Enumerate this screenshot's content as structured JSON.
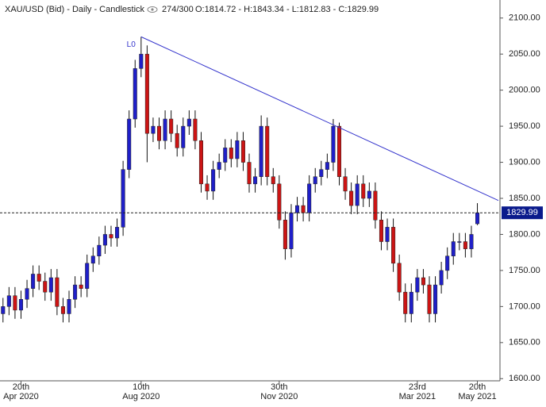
{
  "header": {
    "symbol": "XAU/USD (Bid) - Daily - Candlestick",
    "counter": "274/300",
    "ohlc": "O:1814.72 - H:1843.34 - L:1812.83 - C:1829.99"
  },
  "chart_data": {
    "type": "candlestick",
    "up_color": "#1f1fc8",
    "down_color": "#cc1414",
    "ylim": [
      1597,
      2125
    ],
    "yticks": [
      {
        "value": 1600,
        "label": "1600.00"
      },
      {
        "value": 1650,
        "label": "1650.00"
      },
      {
        "value": 1700,
        "label": "1700.00"
      },
      {
        "value": 1750,
        "label": "1750.00"
      },
      {
        "value": 1800,
        "label": "1800.00"
      },
      {
        "value": 1850,
        "label": "1850.00"
      },
      {
        "value": 1900,
        "label": "1900.00"
      },
      {
        "value": 1950,
        "label": "1950.00"
      },
      {
        "value": 2000,
        "label": "2000.00"
      },
      {
        "value": 2050,
        "label": "2050.00"
      },
      {
        "value": 2100,
        "label": "2100.00"
      }
    ],
    "xlim": [
      -0.5,
      82.5
    ],
    "xticks": [
      {
        "value": 3,
        "label": "20th",
        "sublabel": "Apr 2020"
      },
      {
        "value": 23,
        "label": "10th",
        "sublabel": "Aug 2020"
      },
      {
        "value": 46,
        "label": "30th",
        "sublabel": "Nov 2020"
      },
      {
        "value": 69,
        "label": "23rd",
        "sublabel": "Mar 2021"
      },
      {
        "value": 79,
        "label": "20th",
        "sublabel": "May 2021"
      }
    ],
    "open": [
      1690,
      1700,
      1715,
      1695,
      1710,
      1725,
      1745,
      1735,
      1720,
      1740,
      1700,
      1690,
      1710,
      1730,
      1725,
      1760,
      1770,
      1785,
      1800,
      1795,
      1810,
      1890,
      1960,
      2030,
      2050,
      1940,
      1950,
      1930,
      1960,
      1940,
      1920,
      1950,
      1960,
      1930,
      1870,
      1860,
      1890,
      1900,
      1920,
      1905,
      1930,
      1900,
      1870,
      1880,
      1950,
      1880,
      1870,
      1820,
      1780,
      1830,
      1840,
      1830,
      1870,
      1880,
      1890,
      1900,
      1950,
      1880,
      1860,
      1840,
      1870,
      1850,
      1860,
      1820,
      1790,
      1810,
      1760,
      1720,
      1690,
      1720,
      1740,
      1730,
      1690,
      1730,
      1750,
      1770,
      1790,
      1790,
      1780,
      1814.72
    ],
    "high": [
      1712,
      1727,
      1727,
      1722,
      1737,
      1757,
      1757,
      1747,
      1752,
      1752,
      1712,
      1722,
      1742,
      1742,
      1772,
      1782,
      1797,
      1812,
      1812,
      1822,
      1902,
      1972,
      2042,
      2074,
      2062,
      1962,
      1962,
      1972,
      1972,
      1952,
      1962,
      1972,
      1972,
      1942,
      1882,
      1902,
      1912,
      1932,
      1932,
      1942,
      1942,
      1912,
      1892,
      1965,
      1962,
      1892,
      1882,
      1832,
      1842,
      1852,
      1852,
      1882,
      1892,
      1902,
      1912,
      1960,
      1955,
      1892,
      1872,
      1882,
      1882,
      1872,
      1872,
      1832,
      1822,
      1822,
      1772,
      1732,
      1732,
      1752,
      1752,
      1742,
      1742,
      1762,
      1782,
      1802,
      1802,
      1802,
      1812,
      1843.34
    ],
    "low": [
      1678,
      1688,
      1683,
      1683,
      1698,
      1713,
      1723,
      1708,
      1708,
      1688,
      1678,
      1678,
      1698,
      1713,
      1713,
      1748,
      1758,
      1773,
      1783,
      1783,
      1798,
      1878,
      1948,
      2018,
      1900,
      1928,
      1918,
      1918,
      1928,
      1908,
      1908,
      1938,
      1918,
      1858,
      1848,
      1848,
      1878,
      1888,
      1893,
      1893,
      1888,
      1858,
      1858,
      1868,
      1868,
      1858,
      1808,
      1765,
      1768,
      1818,
      1818,
      1818,
      1858,
      1868,
      1878,
      1888,
      1868,
      1848,
      1828,
      1828,
      1838,
      1838,
      1808,
      1778,
      1778,
      1748,
      1708,
      1678,
      1678,
      1708,
      1718,
      1678,
      1678,
      1718,
      1738,
      1758,
      1778,
      1768,
      1768,
      1812.83
    ],
    "close": [
      1700,
      1715,
      1695,
      1710,
      1725,
      1745,
      1735,
      1720,
      1740,
      1700,
      1690,
      1710,
      1730,
      1725,
      1760,
      1770,
      1785,
      1800,
      1795,
      1810,
      1890,
      1960,
      2030,
      2050,
      1940,
      1950,
      1930,
      1960,
      1940,
      1920,
      1950,
      1960,
      1930,
      1870,
      1860,
      1890,
      1900,
      1920,
      1905,
      1930,
      1900,
      1870,
      1880,
      1950,
      1880,
      1870,
      1820,
      1780,
      1830,
      1840,
      1830,
      1870,
      1880,
      1890,
      1900,
      1950,
      1880,
      1860,
      1840,
      1870,
      1850,
      1860,
      1820,
      1790,
      1810,
      1760,
      1720,
      1690,
      1720,
      1740,
      1730,
      1690,
      1730,
      1750,
      1770,
      1790,
      1790,
      1780,
      1800,
      1829.99
    ],
    "trendline": {
      "label": "L0",
      "color": "#3333cc",
      "x": [
        23,
        82.5
      ],
      "values": [
        2074,
        1847
      ]
    },
    "last_price_color": "#0a1a8c"
  }
}
